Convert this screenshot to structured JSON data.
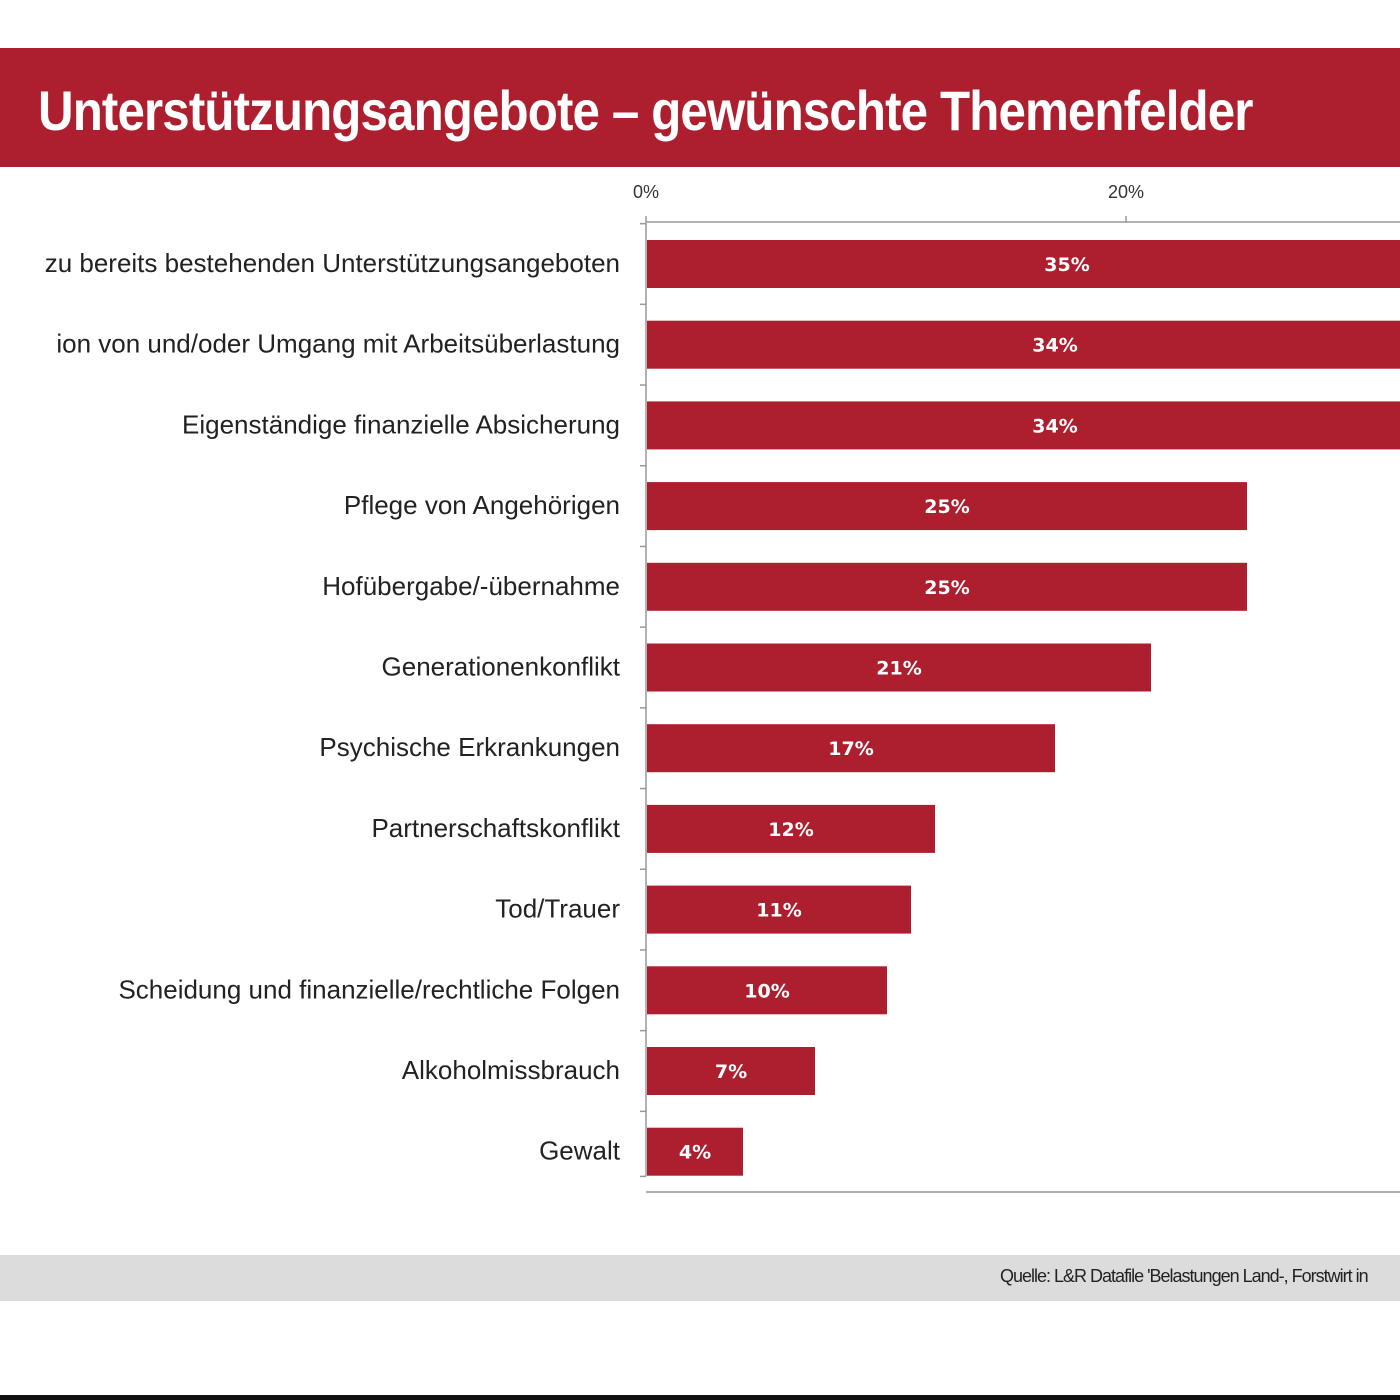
{
  "title": "Unterstützungsangebote – gewünschte Themenfelder",
  "source": "Quelle: L&R Datafile 'Belastungen Land-, Forstwirt in",
  "colors": {
    "bar": "#ad1f2e",
    "title_band": "#ad1f2e",
    "footer": "#dcdcdc"
  },
  "chart_data": {
    "type": "bar",
    "orientation": "horizontal",
    "categories": [
      "zu bereits bestehenden Unterstützungsangeboten",
      "ion von und/oder Umgang mit Arbeitsüberlastung",
      "Eigenständige finanzielle Absicherung",
      "Pflege von Angehörigen",
      "Hofübergabe/-übernahme",
      "Generationenkonflikt",
      "Psychische Erkrankungen",
      "Partnerschaftskonflikt",
      "Tod/Trauer",
      "Scheidung und finanzielle/rechtliche Folgen",
      "Alkoholmissbrauch",
      "Gewalt"
    ],
    "values": [
      35,
      34,
      34,
      25,
      25,
      21,
      17,
      12,
      11,
      10,
      7,
      4
    ],
    "data_labels": [
      "35%",
      "34%",
      "34%",
      "25%",
      "25%",
      "21%",
      "17%",
      "12%",
      "11%",
      "10%",
      "7%",
      "4%"
    ],
    "x_ticks": [
      "0%",
      "20%"
    ],
    "x_tick_values": [
      0,
      20
    ],
    "xlim": [
      0,
      31.5
    ],
    "axis_position": "top",
    "grid": false,
    "legend": "none"
  }
}
